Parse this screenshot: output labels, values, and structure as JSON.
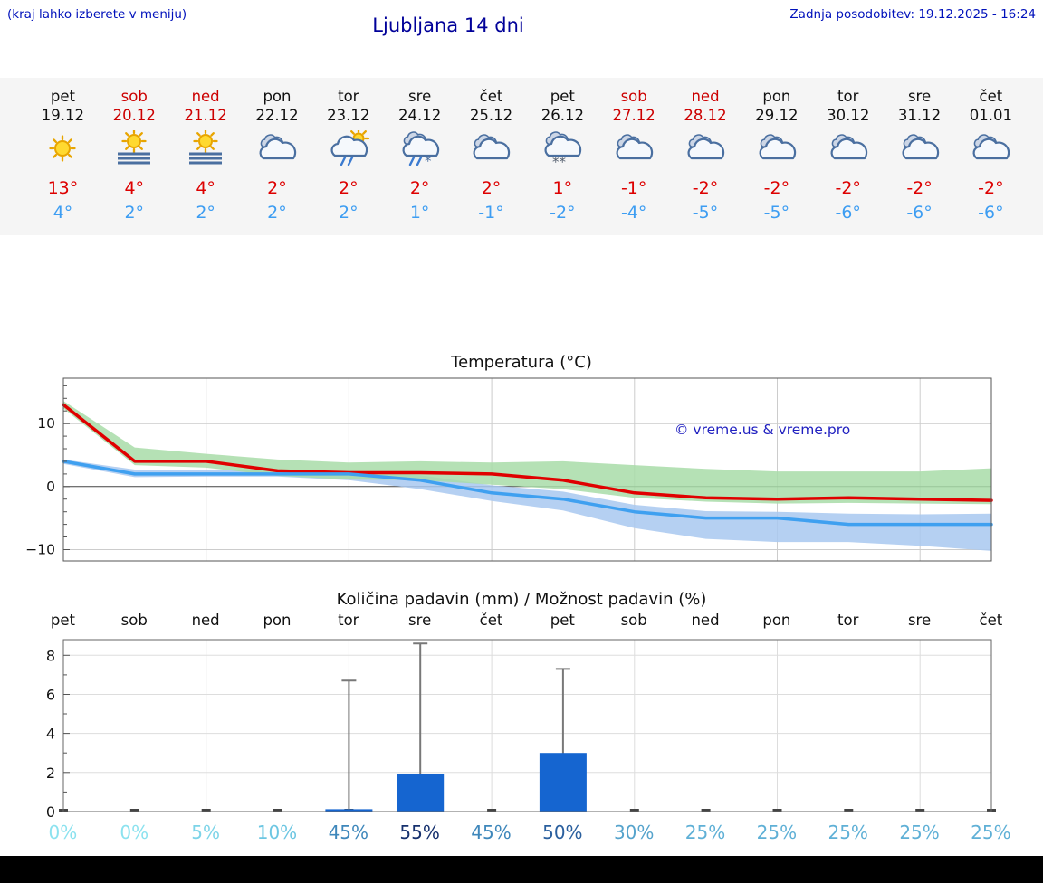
{
  "header": {
    "note": "(kraj lahko izberete v meniju)",
    "title": "Ljubljana 14 dni",
    "last_update": "Zadnja posodobitev: 19.12.2025 - 16:24"
  },
  "colors": {
    "note_blue": "#0011bb",
    "title_blue": "#000099",
    "weekend_red": "#cc0000",
    "high_temp_red": "#dd0000",
    "low_temp_blue": "#3d9df2",
    "bar_blue": "#1565d0",
    "max_line": "#e00000",
    "min_line": "#3fa0f0",
    "max_band_green": "#a8dca8",
    "min_band_blue": "#a8c8f0"
  },
  "forecast": {
    "days": [
      {
        "name": "pet",
        "date": "19.12",
        "weekend": false,
        "icon": "sun",
        "high": "13°",
        "low": "4°"
      },
      {
        "name": "sob",
        "date": "20.12",
        "weekend": true,
        "icon": "sun-fog",
        "high": "4°",
        "low": "2°"
      },
      {
        "name": "ned",
        "date": "21.12",
        "weekend": true,
        "icon": "sun-fog",
        "high": "4°",
        "low": "2°"
      },
      {
        "name": "pon",
        "date": "22.12",
        "weekend": false,
        "icon": "cloud",
        "high": "2°",
        "low": "2°"
      },
      {
        "name": "tor",
        "date": "23.12",
        "weekend": false,
        "icon": "sun-cloud-rain",
        "high": "2°",
        "low": "2°"
      },
      {
        "name": "sre",
        "date": "24.12",
        "weekend": false,
        "icon": "cloud-sleet",
        "high": "2°",
        "low": "1°"
      },
      {
        "name": "čet",
        "date": "25.12",
        "weekend": false,
        "icon": "cloud",
        "high": "2°",
        "low": "-1°"
      },
      {
        "name": "pet",
        "date": "26.12",
        "weekend": false,
        "icon": "cloud-snow",
        "high": "1°",
        "low": "-2°"
      },
      {
        "name": "sob",
        "date": "27.12",
        "weekend": true,
        "icon": "cloud",
        "high": "-1°",
        "low": "-4°"
      },
      {
        "name": "ned",
        "date": "28.12",
        "weekend": true,
        "icon": "cloud",
        "high": "-2°",
        "low": "-5°"
      },
      {
        "name": "pon",
        "date": "29.12",
        "weekend": false,
        "icon": "cloud",
        "high": "-2°",
        "low": "-5°"
      },
      {
        "name": "tor",
        "date": "30.12",
        "weekend": false,
        "icon": "cloud",
        "high": "-2°",
        "low": "-6°"
      },
      {
        "name": "sre",
        "date": "31.12",
        "weekend": false,
        "icon": "cloud",
        "high": "-2°",
        "low": "-6°"
      },
      {
        "name": "čet",
        "date": "01.01",
        "weekend": false,
        "icon": "cloud",
        "high": "-2°",
        "low": "-6°"
      }
    ]
  },
  "chart_data": [
    {
      "type": "line",
      "title": "Temperatura (°C)",
      "categories": [
        "pet",
        "sob",
        "ned",
        "pon",
        "tor",
        "sre",
        "čet",
        "pet",
        "sob",
        "ned",
        "pon",
        "tor",
        "sre",
        "čet"
      ],
      "xlabel": "",
      "ylabel": "°C",
      "ylim": [
        -11.8,
        17.2
      ],
      "yticks": [
        -10,
        0,
        10
      ],
      "grid": true,
      "watermark": "© vreme.us & vreme.pro",
      "series": [
        {
          "name": "max-temp",
          "color": "#e00000",
          "values": [
            13,
            4,
            4,
            2.5,
            2.2,
            2.2,
            2,
            1,
            -1,
            -1.8,
            -2,
            -1.8,
            -2,
            -2.2
          ]
        },
        {
          "name": "min-temp",
          "color": "#3fa0f0",
          "values": [
            4,
            2,
            2,
            2,
            2,
            1,
            -1,
            -2,
            -4,
            -5,
            -5,
            -6,
            -6,
            -6
          ]
        }
      ],
      "bands": [
        {
          "name": "min-temp-range",
          "color": "#a8c8f0",
          "upper": [
            4.3,
            2.7,
            2.6,
            2.6,
            2.6,
            1.8,
            0.2,
            -0.8,
            -2.9,
            -3.9,
            -4.0,
            -4.3,
            -4.4,
            -4.3
          ],
          "lower": [
            3.6,
            1.5,
            1.6,
            1.6,
            1.0,
            -0.4,
            -2.3,
            -3.8,
            -6.6,
            -8.3,
            -8.8,
            -8.8,
            -9.4,
            -10.2
          ]
        },
        {
          "name": "max-temp-range",
          "color": "#a8dca8",
          "upper": [
            13.6,
            6.2,
            5.2,
            4.3,
            3.8,
            4.0,
            3.8,
            4.0,
            3.4,
            2.8,
            2.4,
            2.4,
            2.4,
            2.9
          ],
          "lower": [
            12.4,
            3.4,
            3.0,
            1.7,
            1.1,
            1.0,
            0.3,
            -0.4,
            -1.8,
            -2.4,
            -2.7,
            -2.6,
            -2.7,
            -2.8
          ]
        }
      ]
    },
    {
      "type": "bar",
      "title": "Količina padavin (mm) / Možnost padavin (%)",
      "categories": [
        "pet",
        "sob",
        "ned",
        "pon",
        "tor",
        "sre",
        "čet",
        "pet",
        "sob",
        "ned",
        "pon",
        "tor",
        "sre",
        "čet"
      ],
      "xlabel": "",
      "ylabel": "mm",
      "ylim": [
        0,
        8.8
      ],
      "yticks": [
        0,
        2,
        4,
        6,
        8
      ],
      "grid": true,
      "bar_color": "#1565d0",
      "values": [
        0,
        0,
        0,
        0,
        0.12,
        1.9,
        0,
        3.0,
        0,
        0,
        0,
        0,
        0,
        0
      ],
      "whiskers": [
        0,
        0,
        0,
        0,
        6.7,
        8.6,
        0,
        7.3,
        0,
        0,
        0,
        0,
        0,
        0
      ],
      "probabilities": [
        {
          "label": "0%",
          "color": "#8be2ef"
        },
        {
          "label": "0%",
          "color": "#8be2ef"
        },
        {
          "label": "5%",
          "color": "#7dd4e8"
        },
        {
          "label": "10%",
          "color": "#6cc6e2"
        },
        {
          "label": "45%",
          "color": "#3e87bb"
        },
        {
          "label": "55%",
          "color": "#16316e"
        },
        {
          "label": "45%",
          "color": "#3e87bb"
        },
        {
          "label": "50%",
          "color": "#2a5f9e"
        },
        {
          "label": "30%",
          "color": "#55a3cc"
        },
        {
          "label": "25%",
          "color": "#5fb0d6"
        },
        {
          "label": "25%",
          "color": "#5fb0d6"
        },
        {
          "label": "25%",
          "color": "#5fb0d6"
        },
        {
          "label": "25%",
          "color": "#5fb0d6"
        },
        {
          "label": "25%",
          "color": "#5fb0d6"
        }
      ]
    }
  ]
}
